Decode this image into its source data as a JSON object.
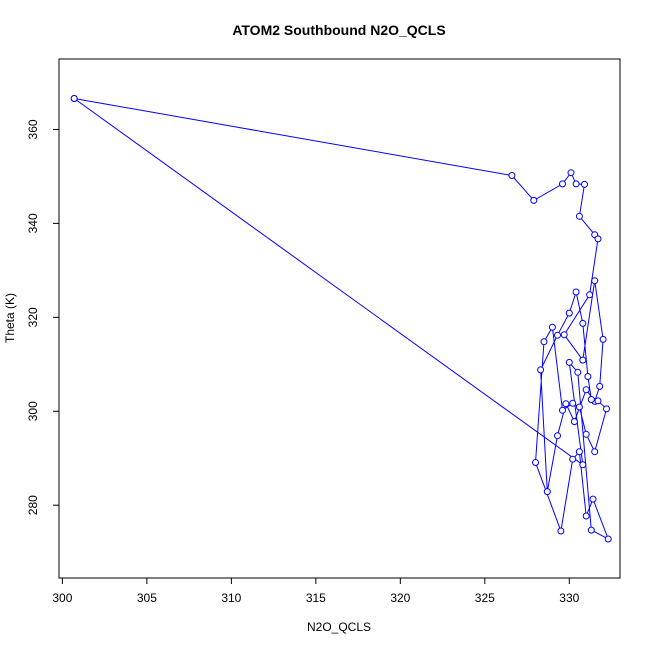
{
  "chart_data": {
    "type": "line",
    "title": "ATOM2 Southbound N2O_QCLS",
    "xlabel": "N2O_QCLS",
    "ylabel": "Theta (K)",
    "xlim": [
      299.8,
      333.0
    ],
    "ylim": [
      264.5,
      375.0
    ],
    "xticks": [
      300,
      305,
      310,
      315,
      320,
      325,
      330
    ],
    "yticks": [
      280,
      300,
      320,
      340,
      360
    ],
    "grid": false,
    "series": [
      {
        "color": "#0000ff",
        "marker": "open-circle",
        "x": [
          300.7,
          326.6,
          327.9,
          329.6,
          330.1,
          330.4,
          330.9,
          330.6,
          331.5,
          331.7,
          331.2,
          329.7,
          330.8,
          331.5,
          332.0,
          331.8,
          331.5,
          331.0,
          330.3,
          329.8,
          329.3,
          328.7,
          328.3,
          329.3,
          330.0,
          330.4,
          330.8,
          331.1,
          331.3,
          331.7,
          332.2,
          331.5,
          331.0,
          330.6,
          330.2,
          329.6,
          329.0,
          328.5,
          328.0,
          329.5,
          330.2,
          330.6,
          331.0,
          331.4,
          332.3,
          331.3,
          330.5,
          330.0,
          330.8,
          300.7
        ],
        "y": [
          366.6,
          350.2,
          344.9,
          348.4,
          350.8,
          348.4,
          348.3,
          341.5,
          337.6,
          336.7,
          324.8,
          316.3,
          310.9,
          327.8,
          315.3,
          305.3,
          302.1,
          304.6,
          297.8,
          301.6,
          294.8,
          282.9,
          308.8,
          316.2,
          320.9,
          325.4,
          318.7,
          307.4,
          302.5,
          302.2,
          300.5,
          291.4,
          295.1,
          300.9,
          301.7,
          300.2,
          317.9,
          314.8,
          289.1,
          274.5,
          289.8,
          291.4,
          277.7,
          281.3,
          272.8,
          274.7,
          308.3,
          310.4,
          288.6,
          366.6
        ]
      }
    ]
  }
}
